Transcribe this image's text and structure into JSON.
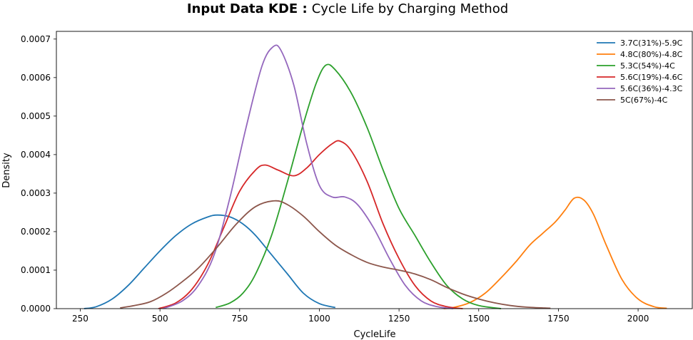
{
  "chart_data": {
    "type": "line",
    "title_bold": "Input Data KDE :",
    "title_rest": "Cycle Life by Charging Method",
    "xlabel": "CycleLife",
    "ylabel": "Density",
    "xlim": [
      175,
      2170
    ],
    "ylim": [
      0,
      0.00072
    ],
    "xticks": [
      250,
      500,
      750,
      1000,
      1250,
      1500,
      1750,
      2000
    ],
    "xtick_labels": [
      "250",
      "500",
      "750",
      "1000",
      "1250",
      "1500",
      "1750",
      "2000"
    ],
    "yticks": [
      0,
      0.0001,
      0.0002,
      0.0003,
      0.0004,
      0.0005,
      0.0006,
      0.0007
    ],
    "ytick_labels": [
      "0.0000",
      "0.0001",
      "0.0002",
      "0.0003",
      "0.0004",
      "0.0005",
      "0.0006",
      "0.0007"
    ],
    "legend_position": "top-right",
    "series": [
      {
        "name": "3.7C(31%)-5.9C",
        "color": "#1f77b4",
        "points": [
          [
            262,
            0.0
          ],
          [
            300,
            5e-06
          ],
          [
            350,
            2.5e-05
          ],
          [
            400,
            6e-05
          ],
          [
            450,
            0.000105
          ],
          [
            500,
            0.00015
          ],
          [
            550,
            0.00019
          ],
          [
            600,
            0.00022
          ],
          [
            650,
            0.000238
          ],
          [
            680,
            0.000243
          ],
          [
            720,
            0.000238
          ],
          [
            760,
            0.00022
          ],
          [
            800,
            0.00019
          ],
          [
            850,
            0.00014
          ],
          [
            900,
            9e-05
          ],
          [
            950,
            4e-05
          ],
          [
            1000,
            1.3e-05
          ],
          [
            1050,
            3e-06
          ]
        ]
      },
      {
        "name": "4.8C(80%)-4.8C",
        "color": "#ff7f0e",
        "points": [
          [
            1390,
            0.0
          ],
          [
            1420,
            3e-06
          ],
          [
            1470,
            1.5e-05
          ],
          [
            1520,
            4e-05
          ],
          [
            1570,
            8e-05
          ],
          [
            1620,
            0.000125
          ],
          [
            1660,
            0.000165
          ],
          [
            1700,
            0.000195
          ],
          [
            1740,
            0.000225
          ],
          [
            1770,
            0.000255
          ],
          [
            1800,
            0.000287
          ],
          [
            1830,
            0.000282
          ],
          [
            1860,
            0.000245
          ],
          [
            1900,
            0.000165
          ],
          [
            1950,
            7.5e-05
          ],
          [
            2000,
            2.5e-05
          ],
          [
            2050,
            5e-06
          ],
          [
            2090,
            1e-06
          ]
        ]
      },
      {
        "name": "5.3C(54%)-4C",
        "color": "#2ca02c",
        "points": [
          [
            675,
            3e-06
          ],
          [
            720,
            1.5e-05
          ],
          [
            760,
            4e-05
          ],
          [
            800,
            9e-05
          ],
          [
            850,
            0.00019
          ],
          [
            900,
            0.00033
          ],
          [
            950,
            0.00048
          ],
          [
            990,
            0.000585
          ],
          [
            1020,
            0.000632
          ],
          [
            1050,
            0.00062
          ],
          [
            1100,
            0.00056
          ],
          [
            1150,
            0.00047
          ],
          [
            1200,
            0.00036
          ],
          [
            1250,
            0.00026
          ],
          [
            1300,
            0.00019
          ],
          [
            1350,
            0.00012
          ],
          [
            1400,
            6e-05
          ],
          [
            1450,
            2.5e-05
          ],
          [
            1500,
            8e-06
          ],
          [
            1570,
            0.0
          ]
        ]
      },
      {
        "name": "5.6C(19%)-4.6C",
        "color": "#d62728",
        "points": [
          [
            495,
            0.0
          ],
          [
            550,
            1.5e-05
          ],
          [
            600,
            5e-05
          ],
          [
            650,
            0.000115
          ],
          [
            700,
            0.00021
          ],
          [
            750,
            0.000305
          ],
          [
            800,
            0.00036
          ],
          [
            830,
            0.000373
          ],
          [
            870,
            0.00036
          ],
          [
            920,
            0.000345
          ],
          [
            960,
            0.000365
          ],
          [
            1000,
            0.0004
          ],
          [
            1040,
            0.000428
          ],
          [
            1065,
            0.000435
          ],
          [
            1100,
            0.00041
          ],
          [
            1150,
            0.00033
          ],
          [
            1200,
            0.00022
          ],
          [
            1250,
            0.00013
          ],
          [
            1300,
            6e-05
          ],
          [
            1350,
            2e-05
          ],
          [
            1400,
            5e-06
          ],
          [
            1450,
            0.0
          ]
        ]
      },
      {
        "name": "5.6C(36%)-4.3C",
        "color": "#9467bd",
        "points": [
          [
            510,
            0.0
          ],
          [
            570,
            2e-05
          ],
          [
            620,
            6e-05
          ],
          [
            670,
            0.00014
          ],
          [
            720,
            0.00029
          ],
          [
            770,
            0.00047
          ],
          [
            820,
            0.00063
          ],
          [
            855,
            0.00068
          ],
          [
            880,
            0.00067
          ],
          [
            920,
            0.00058
          ],
          [
            960,
            0.00043
          ],
          [
            1000,
            0.00032
          ],
          [
            1040,
            0.00029
          ],
          [
            1080,
            0.00029
          ],
          [
            1120,
            0.00027
          ],
          [
            1170,
            0.00021
          ],
          [
            1220,
            0.00013
          ],
          [
            1270,
            6e-05
          ],
          [
            1320,
            2e-05
          ],
          [
            1370,
            5e-06
          ],
          [
            1420,
            0.0
          ]
        ]
      },
      {
        "name": "5C(67%)-4C",
        "color": "#8c564b",
        "points": [
          [
            375,
            2e-06
          ],
          [
            420,
            8e-06
          ],
          [
            470,
            1.8e-05
          ],
          [
            520,
            4e-05
          ],
          [
            570,
            7e-05
          ],
          [
            620,
            0.000105
          ],
          [
            680,
            0.00016
          ],
          [
            740,
            0.00022
          ],
          [
            800,
            0.000265
          ],
          [
            860,
            0.00028
          ],
          [
            900,
            0.00027
          ],
          [
            950,
            0.00024
          ],
          [
            1000,
            0.0002
          ],
          [
            1050,
            0.000165
          ],
          [
            1100,
            0.00014
          ],
          [
            1150,
            0.00012
          ],
          [
            1200,
            0.000108
          ],
          [
            1250,
            0.0001
          ],
          [
            1300,
            9e-05
          ],
          [
            1350,
            7.5e-05
          ],
          [
            1400,
            5.5e-05
          ],
          [
            1450,
            3.8e-05
          ],
          [
            1500,
            2.5e-05
          ],
          [
            1550,
            1.5e-05
          ],
          [
            1600,
            8e-06
          ],
          [
            1650,
            4e-06
          ],
          [
            1725,
            1e-06
          ]
        ]
      }
    ]
  }
}
